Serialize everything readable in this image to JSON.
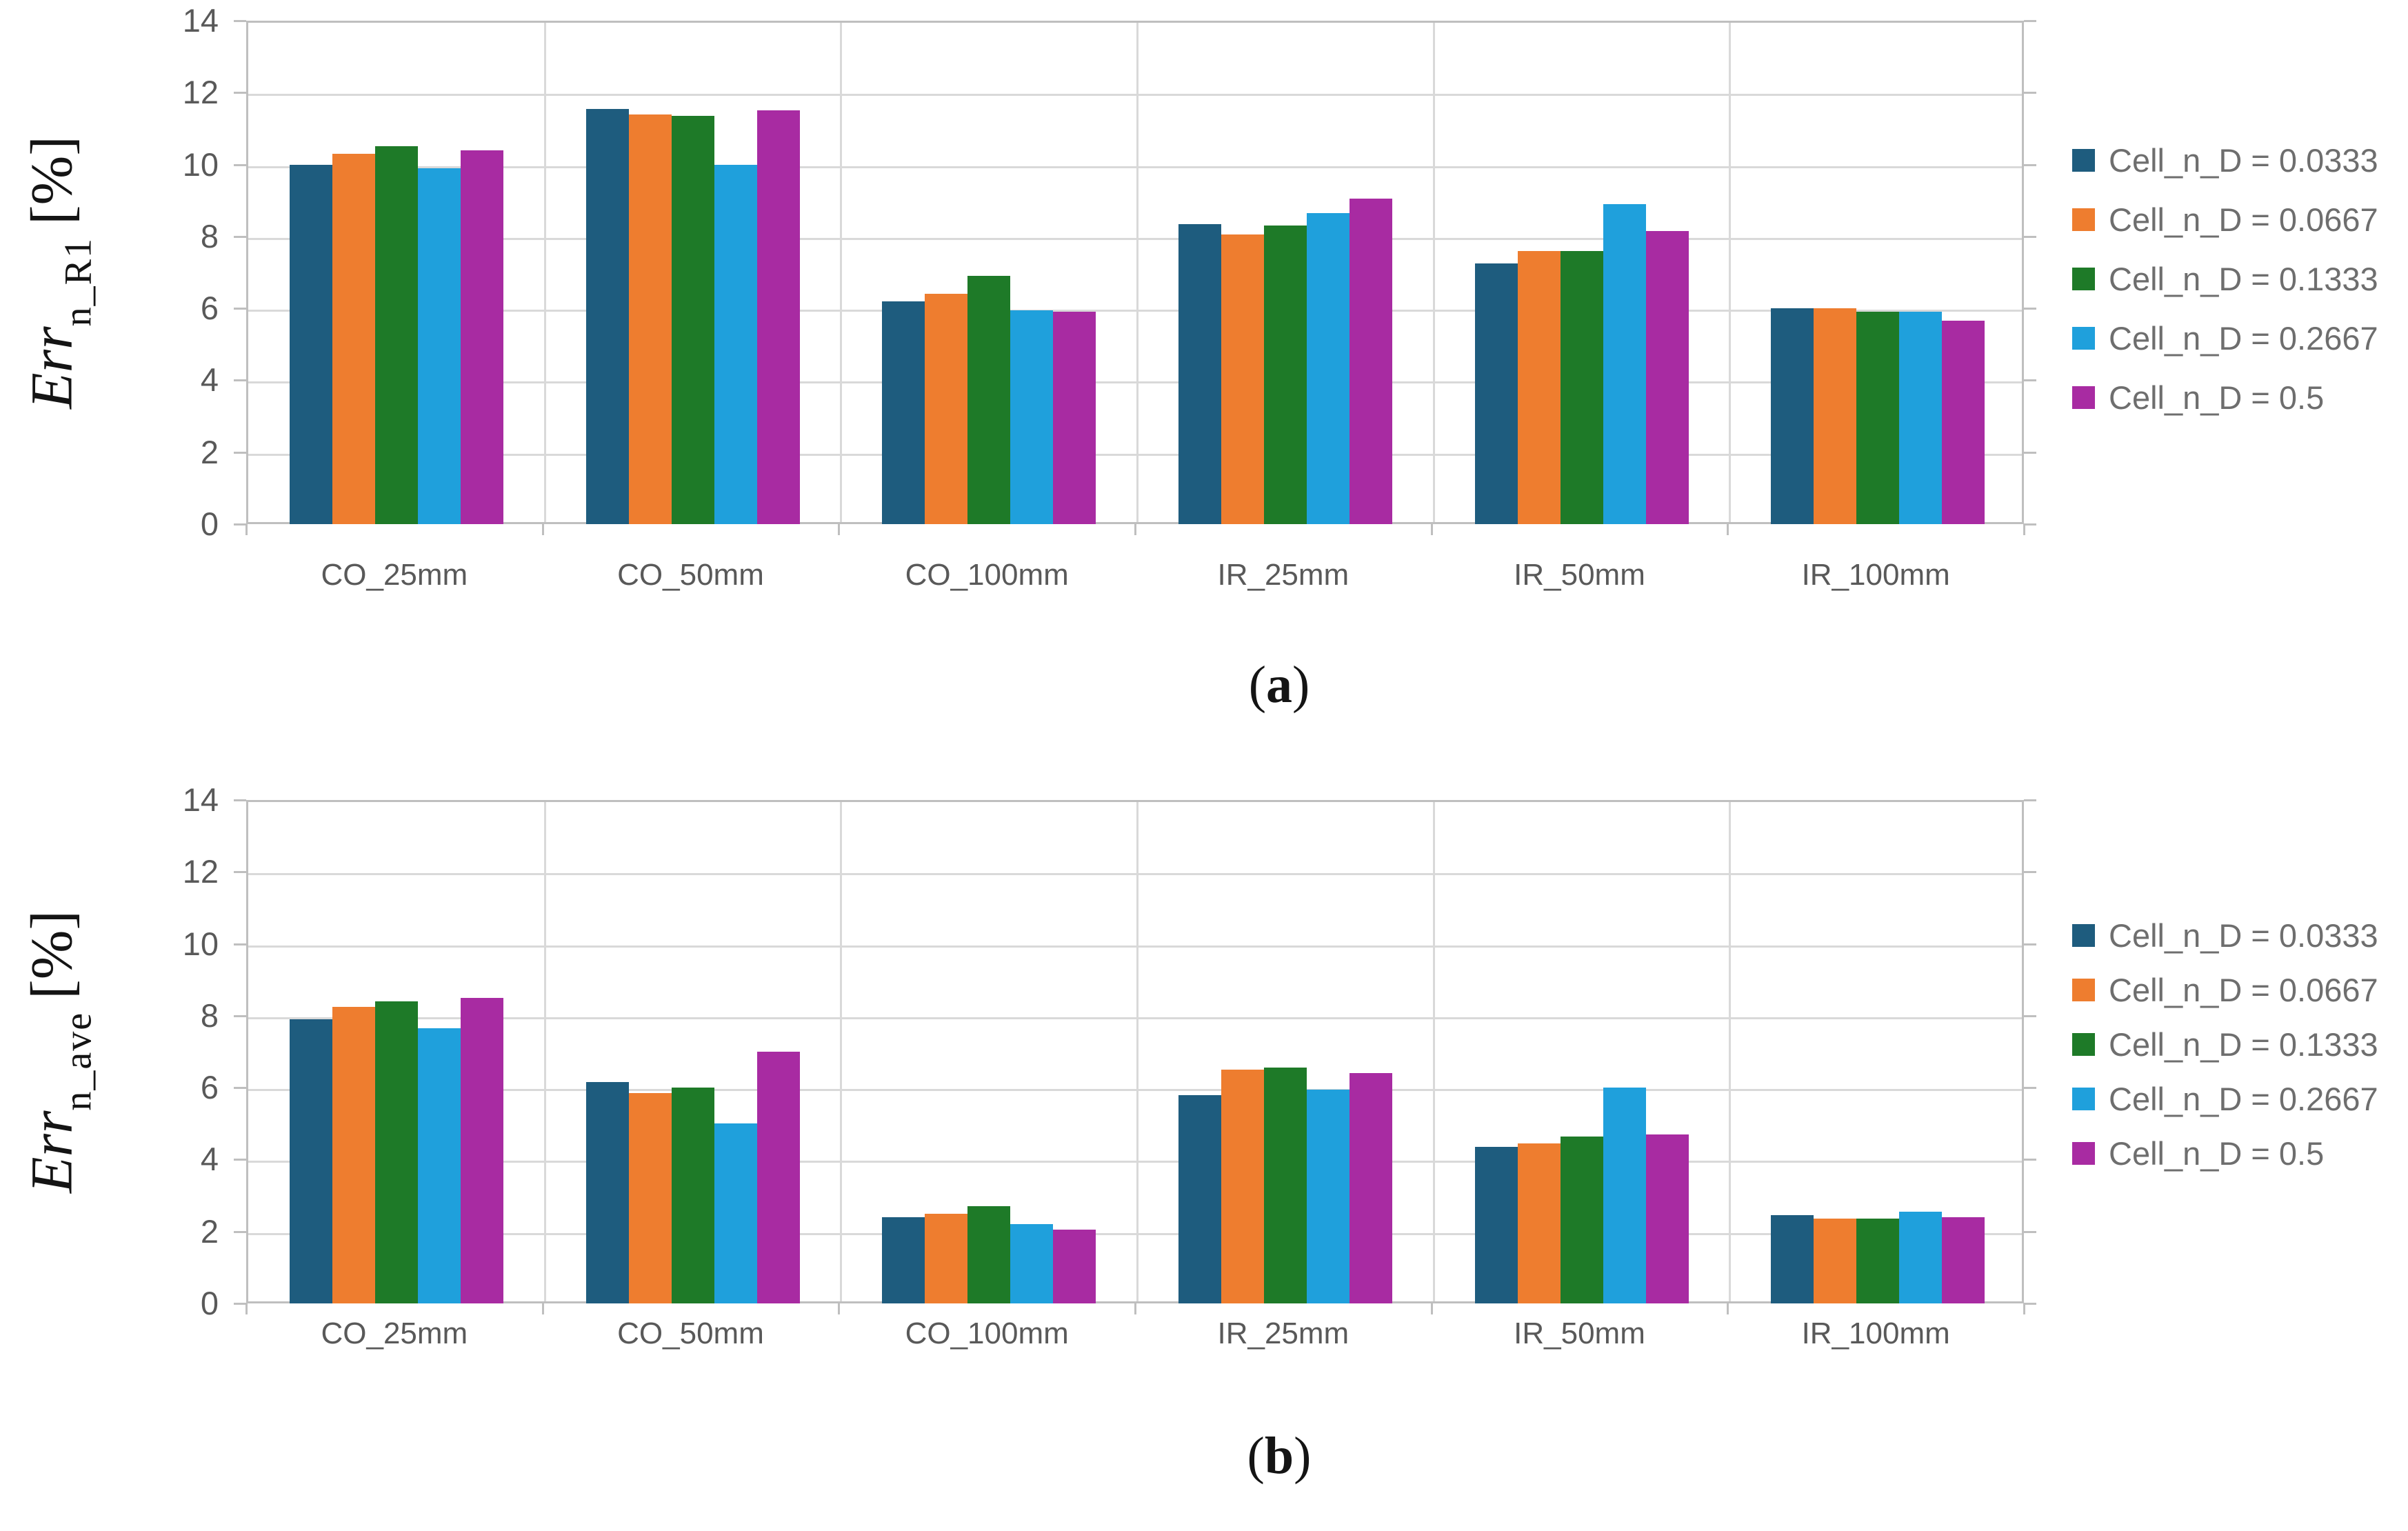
{
  "figure": {
    "background": "#ffffff",
    "grid_color": "#D9D9D9",
    "border_color": "#BFBFBF",
    "tick_text_color": "#595959",
    "legend_text_color": "#6e6e6e",
    "captions": {
      "a": {
        "open": "(",
        "letter": "a",
        "close": ")"
      },
      "b": {
        "open": "(",
        "letter": "b",
        "close": ")"
      }
    }
  },
  "chart_data": [
    {
      "type": "bar",
      "title": "",
      "xlabel": "",
      "ylabel": "Err_n_R1 [%]",
      "ylabel_main": "Err",
      "ylabel_sub": "n_R1",
      "ylabel_unit": "[%]",
      "ylim": [
        0,
        14
      ],
      "yticks": [
        0,
        2,
        4,
        6,
        8,
        10,
        12,
        14
      ],
      "grid": true,
      "legend_position": "right",
      "categories": [
        "CO_25mm",
        "CO_50mm",
        "CO_100mm",
        "IR_25mm",
        "IR_50mm",
        "IR_100mm"
      ],
      "series": [
        {
          "name": "Cell_n_D = 0.0333",
          "color": "#1E5C7E",
          "values": [
            10.0,
            11.55,
            6.2,
            8.35,
            7.25,
            6.0
          ]
        },
        {
          "name": "Cell_n_D = 0.0667",
          "color": "#EE7D2F",
          "values": [
            10.3,
            11.4,
            6.4,
            8.05,
            7.6,
            6.0
          ]
        },
        {
          "name": "Cell_n_D = 0.1333",
          "color": "#1E7A28",
          "values": [
            10.5,
            11.35,
            6.9,
            8.3,
            7.6,
            5.9
          ]
        },
        {
          "name": "Cell_n_D = 0.2667",
          "color": "#1FA0DC",
          "values": [
            9.9,
            10.0,
            5.95,
            8.65,
            8.9,
            5.9
          ]
        },
        {
          "name": "Cell_n_D = 0.5",
          "color": "#A82BA2",
          "values": [
            10.4,
            11.5,
            5.9,
            9.05,
            8.15,
            5.65
          ]
        }
      ]
    },
    {
      "type": "bar",
      "title": "",
      "xlabel": "",
      "ylabel": "Err_n_ave [%]",
      "ylabel_main": "Err",
      "ylabel_sub": "n_ave",
      "ylabel_unit": "[%]",
      "ylim": [
        0,
        14
      ],
      "yticks": [
        0,
        2,
        4,
        6,
        8,
        10,
        12,
        14
      ],
      "grid": true,
      "legend_position": "right",
      "categories": [
        "CO_25mm",
        "CO_50mm",
        "CO_100mm",
        "IR_25mm",
        "IR_50mm",
        "IR_100mm"
      ],
      "series": [
        {
          "name": "Cell_n_D = 0.0333",
          "color": "#1E5C7E",
          "values": [
            7.9,
            6.15,
            2.4,
            5.8,
            4.35,
            2.45
          ]
        },
        {
          "name": "Cell_n_D = 0.0667",
          "color": "#EE7D2F",
          "values": [
            8.25,
            5.85,
            2.5,
            6.5,
            4.45,
            2.35
          ]
        },
        {
          "name": "Cell_n_D = 0.1333",
          "color": "#1E7A28",
          "values": [
            8.4,
            6.0,
            2.7,
            6.55,
            4.65,
            2.35
          ]
        },
        {
          "name": "Cell_n_D = 0.2667",
          "color": "#1FA0DC",
          "values": [
            7.65,
            5.0,
            2.2,
            5.95,
            6.0,
            2.55
          ]
        },
        {
          "name": "Cell_n_D = 0.5",
          "color": "#A82BA2",
          "values": [
            8.5,
            7.0,
            2.05,
            6.4,
            4.7,
            2.4
          ]
        }
      ]
    }
  ]
}
